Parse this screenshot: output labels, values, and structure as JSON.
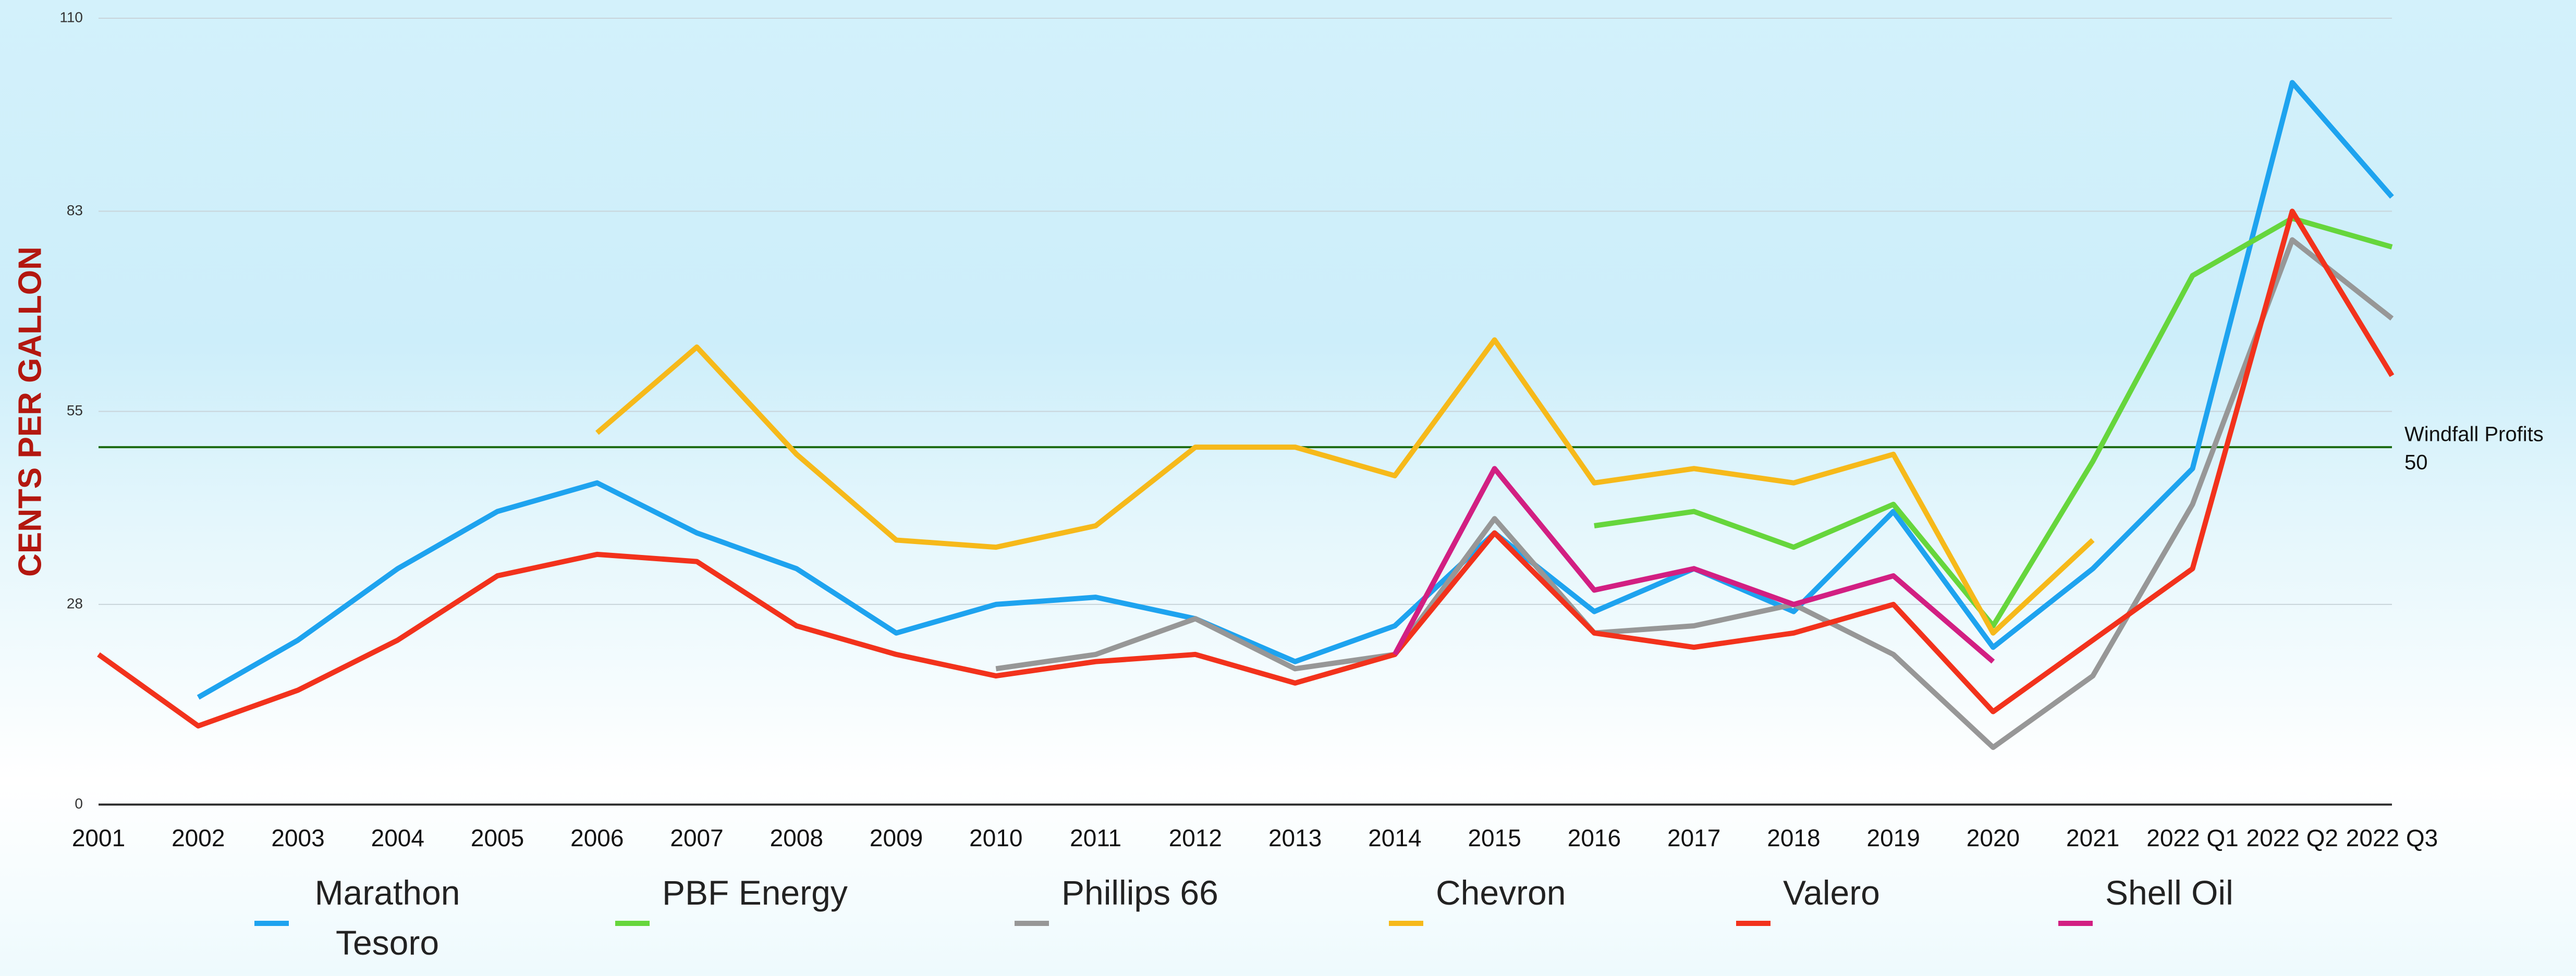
{
  "chart_data": {
    "type": "line",
    "ylabel": "CENTS PER GALLON",
    "categories": [
      "2001",
      "2002",
      "2003",
      "2004",
      "2005",
      "2006",
      "2007",
      "2008",
      "2009",
      "2010",
      "2011",
      "2012",
      "2013",
      "2014",
      "2015",
      "2016",
      "2017",
      "2018",
      "2019",
      "2020",
      "2021",
      "2022 Q1",
      "2022 Q2",
      "2022 Q3"
    ],
    "series": [
      {
        "name": "Marathon Tesoro",
        "color": "#1ea3ef",
        "values": [
          null,
          15,
          23,
          33,
          41,
          45,
          38,
          33,
          24,
          28,
          29,
          26,
          20,
          25,
          38,
          27,
          33,
          27,
          41,
          22,
          33,
          47,
          101,
          85
        ]
      },
      {
        "name": "PBF Energy",
        "color": "#66d63c",
        "values": [
          null,
          null,
          null,
          null,
          null,
          null,
          null,
          null,
          null,
          null,
          null,
          null,
          null,
          null,
          null,
          39,
          41,
          36,
          42,
          25,
          48,
          74,
          82,
          78
        ]
      },
      {
        "name": "Phillips 66",
        "color": "#979797",
        "values": [
          null,
          null,
          null,
          null,
          null,
          null,
          null,
          null,
          null,
          19,
          21,
          26,
          19,
          21,
          40,
          24,
          25,
          28,
          21,
          8,
          18,
          42,
          79,
          68
        ]
      },
      {
        "name": "Chevron",
        "color": "#f6b91a",
        "values": [
          null,
          null,
          null,
          null,
          null,
          52,
          64,
          49,
          37,
          36,
          39,
          50,
          50,
          46,
          65,
          45,
          47,
          45,
          49,
          24,
          37,
          null,
          null,
          null
        ]
      },
      {
        "name": "Valero",
        "color": "#f2321c",
        "values": [
          21,
          11,
          16,
          23,
          32,
          35,
          34,
          25,
          21,
          18,
          20,
          21,
          17,
          21,
          38,
          24,
          22,
          24,
          28,
          13,
          23,
          33,
          83,
          60
        ]
      },
      {
        "name": "Shell Oil",
        "color": "#d21f82",
        "values": [
          null,
          null,
          null,
          null,
          null,
          null,
          null,
          null,
          null,
          null,
          null,
          null,
          null,
          21,
          47,
          30,
          33,
          28,
          32,
          20,
          null,
          null,
          null,
          null
        ]
      }
    ],
    "annotation": {
      "text": "Windfall Profits",
      "value": 50,
      "color": "#1d6b12"
    },
    "ylim": [
      0,
      110
    ],
    "yticks": [
      0,
      28,
      55,
      83,
      110
    ],
    "grid": true
  }
}
